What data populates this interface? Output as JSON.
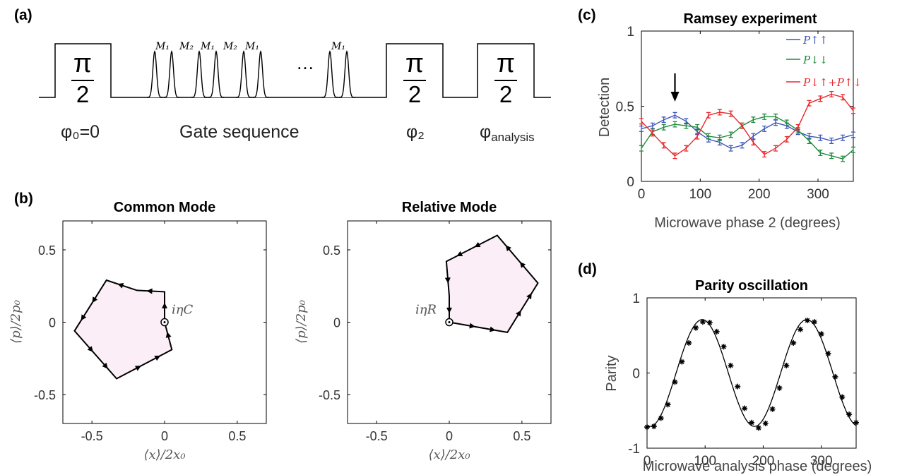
{
  "panels": {
    "a": "(a)",
    "b": "(b)",
    "c": "(c)",
    "d": "(d)"
  },
  "pulse_diagram": {
    "pi_num": "π",
    "pi_den": "2",
    "phi0_label": "φ₀=0",
    "gate_label": "Gate sequence",
    "phi2_label": "φ₂",
    "phi_analysis": "φ",
    "phi_analysis_sub": "analysis",
    "ellipsis": "…",
    "pulse_labels": [
      "M₁",
      "M₂",
      "M₁",
      "M₂",
      "M₁",
      "M₁"
    ]
  },
  "colors": {
    "up": "#3d55b8",
    "down": "#1f8a3c",
    "mixed": "#e8282c",
    "fill": "#fbeef6",
    "ink": "#000000",
    "axis_text": "#444444"
  },
  "chart_data": [
    {
      "type": "line",
      "panel": "c",
      "title": "Ramsey experiment",
      "xlabel": "Microwave phase 2 (degrees)",
      "ylabel": "Detection",
      "xlim": [
        0,
        360
      ],
      "ylim": [
        0,
        1
      ],
      "xticks": [
        0,
        100,
        200,
        300
      ],
      "yticks": [
        0,
        0.5,
        1
      ],
      "x": [
        0,
        19,
        38,
        57,
        76,
        95,
        114,
        133,
        152,
        171,
        190,
        209,
        228,
        247,
        266,
        285,
        304,
        323,
        342,
        360
      ],
      "series": [
        {
          "name": "P↑↑",
          "color": "#3d55b8",
          "values": [
            0.35,
            0.37,
            0.41,
            0.44,
            0.4,
            0.33,
            0.28,
            0.26,
            0.22,
            0.24,
            0.3,
            0.35,
            0.39,
            0.37,
            0.33,
            0.3,
            0.29,
            0.27,
            0.29,
            0.31
          ]
        },
        {
          "name": "P↓↓",
          "color": "#1f8a3c",
          "values": [
            0.22,
            0.33,
            0.36,
            0.38,
            0.37,
            0.36,
            0.3,
            0.29,
            0.31,
            0.37,
            0.41,
            0.43,
            0.43,
            0.39,
            0.34,
            0.27,
            0.19,
            0.17,
            0.15,
            0.21
          ]
        },
        {
          "name": "P↓↑+P↑↓",
          "color": "#e8282c",
          "values": [
            0.4,
            0.32,
            0.24,
            0.17,
            0.22,
            0.3,
            0.44,
            0.46,
            0.45,
            0.37,
            0.26,
            0.18,
            0.22,
            0.28,
            0.36,
            0.52,
            0.55,
            0.58,
            0.56,
            0.47
          ]
        }
      ],
      "legend_position": "top-right",
      "annotation": "arrow at x=57"
    },
    {
      "type": "scatter",
      "panel": "d",
      "title": "Parity oscillation",
      "xlabel": "Microwave analysis phase (degrees)",
      "ylabel": "Parity",
      "xlim": [
        0,
        360
      ],
      "ylim": [
        -1,
        1
      ],
      "xticks": [
        0,
        100,
        200,
        300
      ],
      "yticks": [
        -1,
        0,
        1
      ],
      "fit": {
        "amplitude": 0.71,
        "period": 180,
        "peak_at": 95
      },
      "x": [
        0,
        12,
        24,
        36,
        48,
        60,
        72,
        84,
        96,
        108,
        120,
        132,
        144,
        156,
        168,
        180,
        192,
        204,
        216,
        228,
        240,
        252,
        264,
        276,
        288,
        300,
        312,
        324,
        336,
        348,
        360
      ],
      "values": [
        -0.72,
        -0.71,
        -0.6,
        -0.42,
        -0.12,
        0.15,
        0.4,
        0.6,
        0.68,
        0.67,
        0.55,
        0.35,
        0.1,
        -0.18,
        -0.47,
        -0.66,
        -0.73,
        -0.67,
        -0.48,
        -0.2,
        0.1,
        0.4,
        0.58,
        0.7,
        0.68,
        0.52,
        0.26,
        -0.05,
        -0.32,
        -0.55,
        -0.66
      ]
    },
    {
      "type": "line",
      "panel": "b-left",
      "title": "Common Mode",
      "xlabel": "⟨x⟩/2x₀",
      "ylabel": "⟨p⟩/2p₀",
      "xlim": [
        -0.7,
        0.7
      ],
      "ylim": [
        -0.7,
        0.7
      ],
      "xticks": [
        -0.5,
        0,
        0.5
      ],
      "yticks": [
        -0.5,
        0,
        0.5
      ],
      "annotation": "iηC",
      "x": [
        0.0,
        0.0,
        -0.19,
        -0.4,
        -0.62,
        -0.33,
        0.05,
        0.0
      ],
      "values": [
        0.0,
        0.21,
        0.22,
        0.29,
        -0.06,
        -0.39,
        -0.19,
        0.0
      ]
    },
    {
      "type": "line",
      "panel": "b-right",
      "title": "Relative Mode",
      "xlabel": "⟨x⟩/2x₀",
      "ylabel": "⟨p⟩/2p₀",
      "xlim": [
        -0.7,
        0.7
      ],
      "ylim": [
        -0.7,
        0.7
      ],
      "xticks": [
        -0.5,
        0,
        0.5
      ],
      "yticks": [
        -0.5,
        0,
        0.5
      ],
      "annotation": "iηR",
      "x": [
        0.0,
        0.4,
        0.61,
        0.33,
        -0.02,
        0.0,
        0.0
      ],
      "values": [
        0.0,
        -0.07,
        0.27,
        0.6,
        0.42,
        0.18,
        0.0
      ]
    }
  ]
}
